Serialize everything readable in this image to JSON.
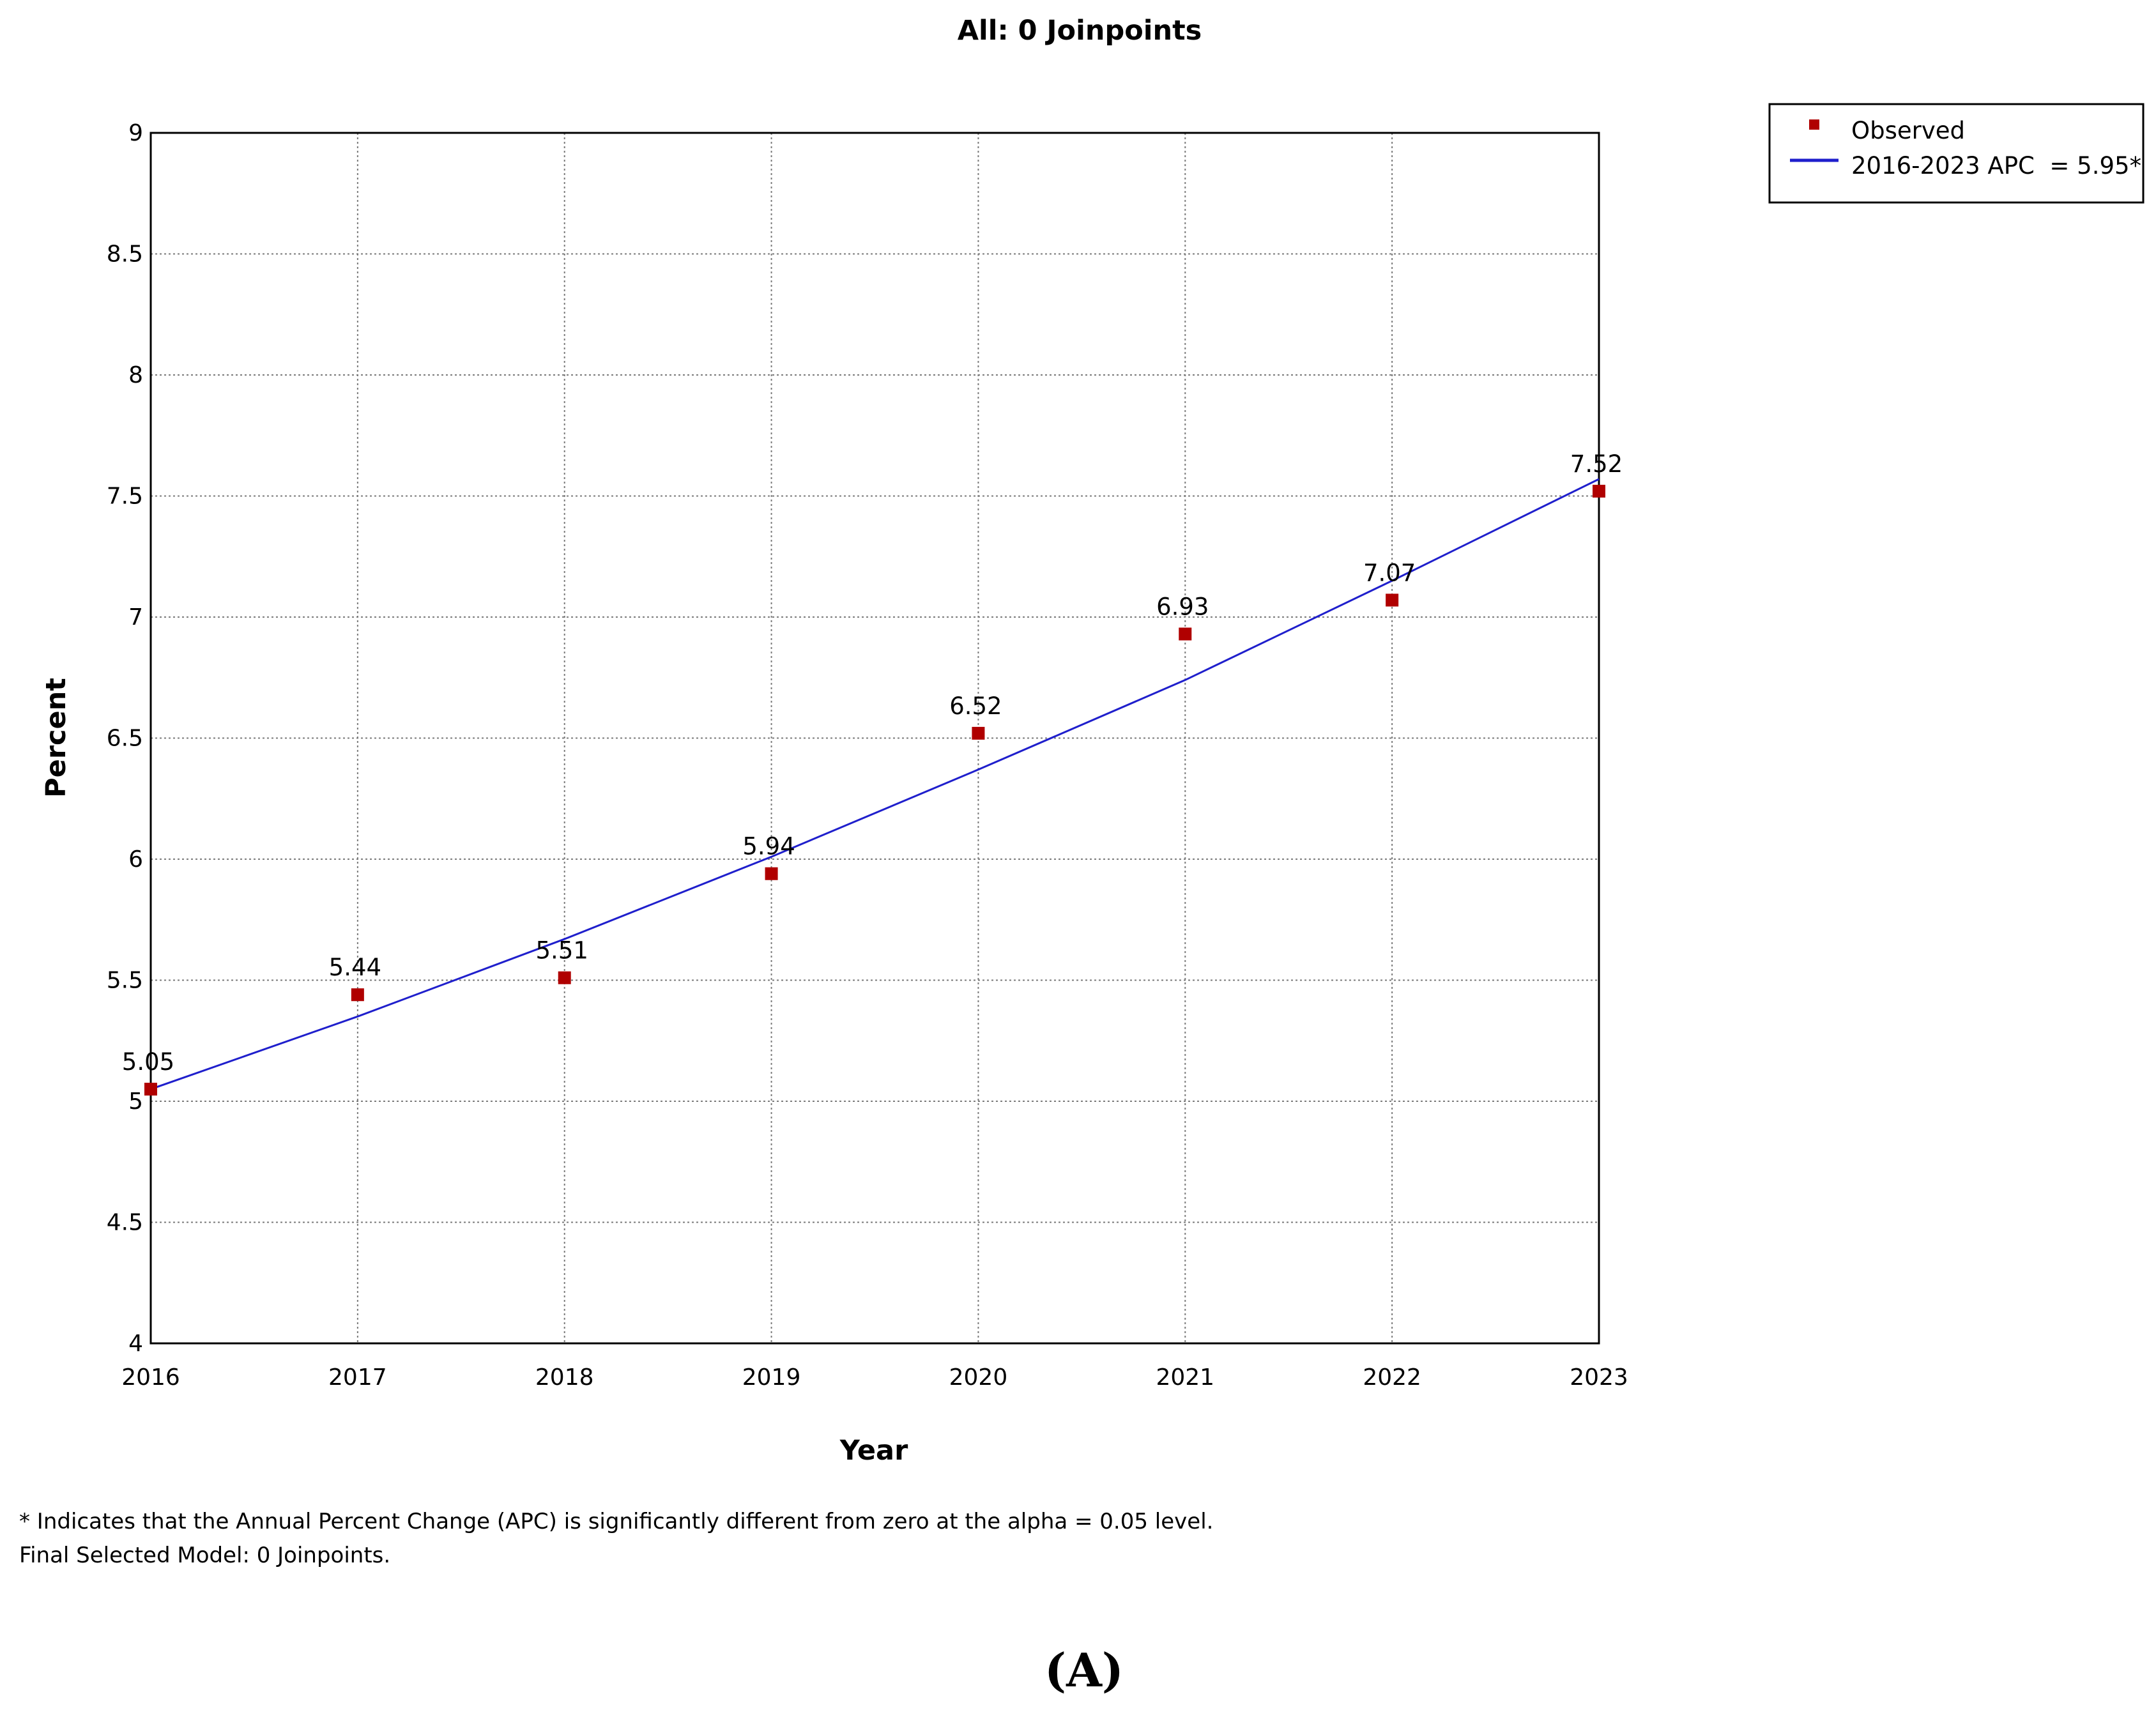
{
  "chart_data": {
    "type": "scatter",
    "title": "All: 0 Joinpoints",
    "xlabel": "Year",
    "ylabel": "Percent",
    "xlim": [
      2016,
      2023
    ],
    "ylim": [
      4,
      9
    ],
    "x_ticks": [
      "2016",
      "2017",
      "2018",
      "2019",
      "2020",
      "2021",
      "2022",
      "2023"
    ],
    "y_ticks": [
      "4",
      "4.5",
      "5",
      "5.5",
      "6",
      "6.5",
      "7",
      "7.5",
      "8",
      "8.5",
      "9"
    ],
    "grid": true,
    "legend_position": "top-right",
    "series": [
      {
        "name": "Observed",
        "kind": "scatter",
        "color": "#b00000",
        "x": [
          2016,
          2017,
          2018,
          2019,
          2020,
          2021,
          2022,
          2023
        ],
        "y": [
          5.05,
          5.44,
          5.51,
          5.94,
          6.52,
          6.93,
          7.07,
          7.52
        ],
        "labels": [
          "5.05",
          "5.44",
          "5.51",
          "5.94",
          "6.52",
          "6.93",
          "7.07",
          "7.52"
        ]
      },
      {
        "name": "2016-2023 APC  = 5.95*",
        "kind": "line",
        "color": "#1f1fcc",
        "x": [
          2016,
          2017,
          2018,
          2019,
          2020,
          2021,
          2022,
          2023
        ],
        "y": [
          5.05,
          5.35,
          5.67,
          6.01,
          6.37,
          6.74,
          7.15,
          7.57
        ]
      }
    ]
  },
  "footnote": {
    "line1": "* Indicates that the Annual Percent Change (APC) is significantly different from zero at the alpha = 0.05 level.",
    "line2": "Final Selected Model: 0 Joinpoints."
  },
  "panel_label": "(A)"
}
